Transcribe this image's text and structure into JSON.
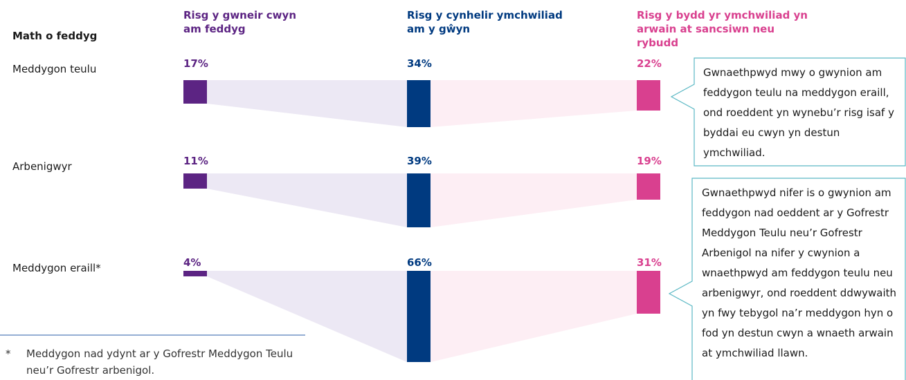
{
  "chart_data": {
    "type": "bar",
    "category_label": "Math o feddyg",
    "categories": [
      "Meddygon teulu",
      "Arbenigwyr",
      "Meddygon eraill*"
    ],
    "series": [
      {
        "name": "Risg y gwneir cwyn am feddyg",
        "color": "#5c2483",
        "connector_color": "#ece8f4",
        "values": [
          17,
          11,
          4
        ],
        "value_labels": [
          "17%",
          "11%",
          "4%"
        ]
      },
      {
        "name": "Risg y cynhelir ymchwiliad am y gŵyn",
        "color": "#003a80",
        "connector_color": "#fdeef4",
        "values": [
          34,
          39,
          66
        ],
        "value_labels": [
          "34%",
          "39%",
          "66%"
        ]
      },
      {
        "name": "Risg y bydd yr ymchwiliad yn arwain at sancsiwn neu rybudd",
        "color": "#d9408f",
        "values": [
          22,
          19,
          31
        ],
        "value_labels": [
          "22%",
          "19%",
          "31%"
        ]
      }
    ],
    "annotations": [
      "Gwnaethpwyd mwy o gwynion am feddygon teulu na meddygon eraill, ond roeddent yn wynebu’r risg isaf y byddai eu cwyn yn destun ymchwiliad.",
      "Gwnaethpwyd nifer is o gwynion am feddygon nad oeddent ar y Gofrestr Meddygon Teulu neu’r Gofrestr Arbenigol na nifer y cwynion a wnaethpwyd am feddygon teulu neu arbenigwyr, ond roeddent ddwywaith yn fwy tebygol na’r meddygon hyn o fod yn destun cwyn a wnaeth arwain at ymchwiliad llawn."
    ],
    "footnote": {
      "marker": "*",
      "text": "Meddygon nad ydynt ar y Gofrestr Meddygon Teulu neu’r Gofrestr arbenigol."
    }
  }
}
